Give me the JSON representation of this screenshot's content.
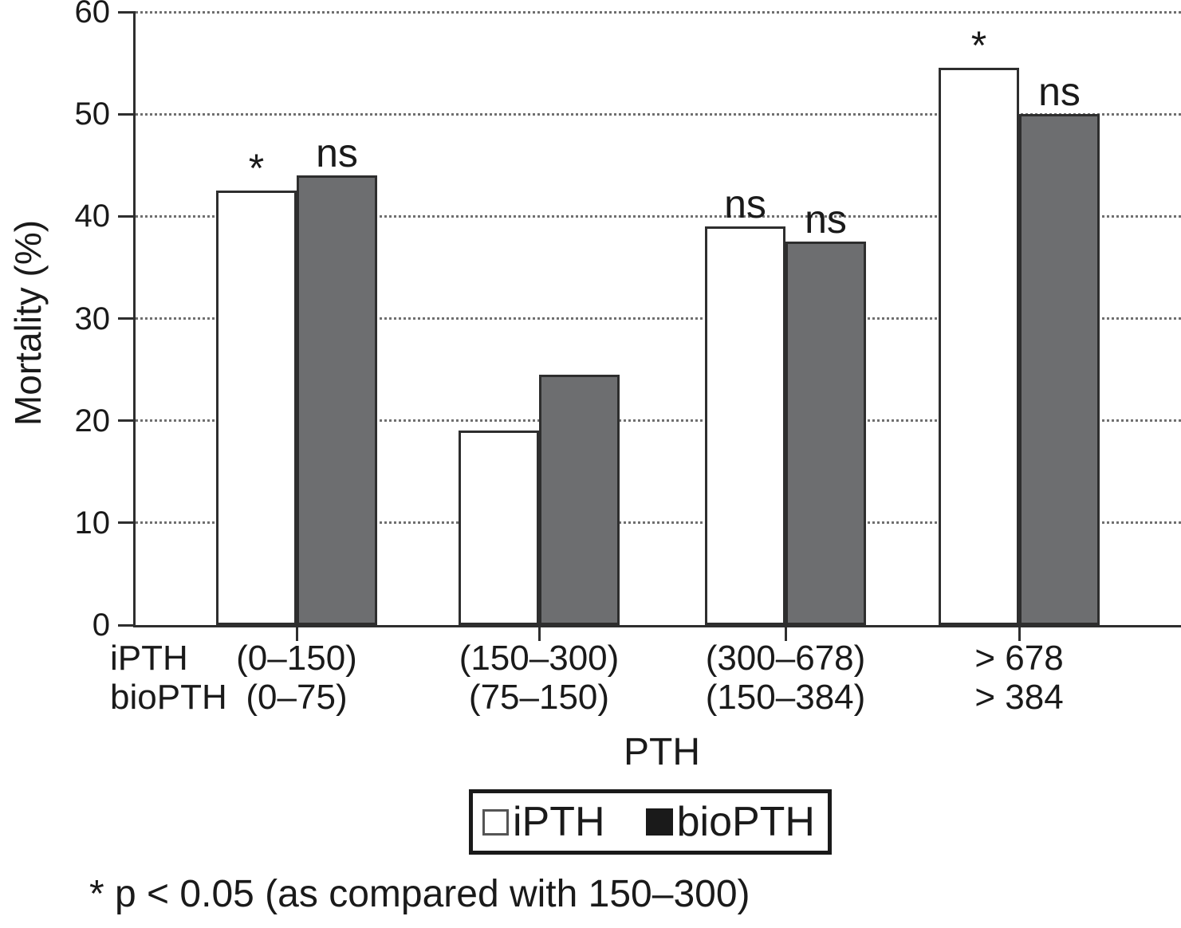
{
  "figure": {
    "background": "#ffffff",
    "text_color": "#1a1a1a"
  },
  "legend": {
    "position": "bottom",
    "entries": [
      {
        "label": "iPTH",
        "swatch_color": "#ffffff",
        "swatch_name": "white-square-swatch"
      },
      {
        "label": "bioPTH",
        "swatch_color": "#1a1a1a",
        "swatch_name": "black-square-swatch"
      }
    ]
  },
  "chart_data": {
    "type": "bar",
    "title": "",
    "xlabel": "PTH",
    "ylabel": "Mortality (%)",
    "ylim": [
      0,
      60
    ],
    "yticks": [
      0,
      10,
      20,
      30,
      40,
      50,
      60
    ],
    "grid": "horizontal-dotted",
    "legend_position": "below-x-axis",
    "categories": [
      "(0–150)",
      "(150–300)",
      "(300–678)",
      "> 678"
    ],
    "x_tick_rows": [
      {
        "header": "iPTH",
        "labels": [
          "(0–150)",
          "(150–300)",
          "(300–678)",
          "> 678"
        ]
      },
      {
        "header": "bioPTH",
        "labels": [
          "(0–75)",
          "(75–150)",
          "(150–384)",
          "> 384"
        ]
      }
    ],
    "series": [
      {
        "name": "iPTH",
        "fill": "#ffffff",
        "values": [
          42.5,
          19,
          39,
          54.5
        ],
        "annotations": [
          "*",
          "",
          "ns",
          "*"
        ]
      },
      {
        "name": "bioPTH",
        "fill": "#6d6e70",
        "values": [
          44,
          24.5,
          37.5,
          50
        ],
        "annotations": [
          "ns",
          "",
          "ns",
          "ns"
        ]
      }
    ],
    "footnote": "* p < 0.05 (as compared with 150–300)",
    "colors": {
      "ipth_fill": "#ffffff",
      "biopth_fill": "#6d6e70",
      "bar_border": "#2e2e2e",
      "gridline": "#6f6f6f",
      "axis": "#2e2e2e"
    }
  }
}
